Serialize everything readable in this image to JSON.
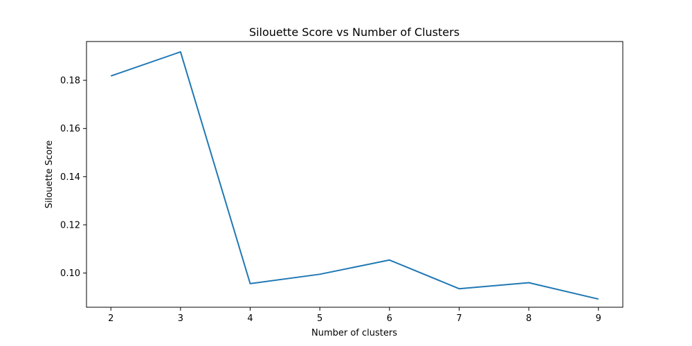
{
  "chart_data": {
    "type": "line",
    "title": "Silouette Score vs Number of Clusters",
    "xlabel": "Number of clusters",
    "ylabel": "Silouette Score",
    "x": [
      2,
      3,
      4,
      5,
      6,
      7,
      8,
      9
    ],
    "xticks": [
      "2",
      "3",
      "4",
      "5",
      "6",
      "7",
      "8",
      "9"
    ],
    "yticks": [
      "0.10",
      "0.12",
      "0.14",
      "0.16",
      "0.18"
    ],
    "xlim": [
      1.65,
      9.35
    ],
    "ylim": [
      0.0858,
      0.1961
    ],
    "series": [
      {
        "values": [
          0.1818,
          0.1918,
          0.0956,
          0.0995,
          0.1054,
          0.0935,
          0.096,
          0.0892
        ],
        "color": "#1f77b4"
      }
    ],
    "grid": false,
    "legend": "none"
  }
}
